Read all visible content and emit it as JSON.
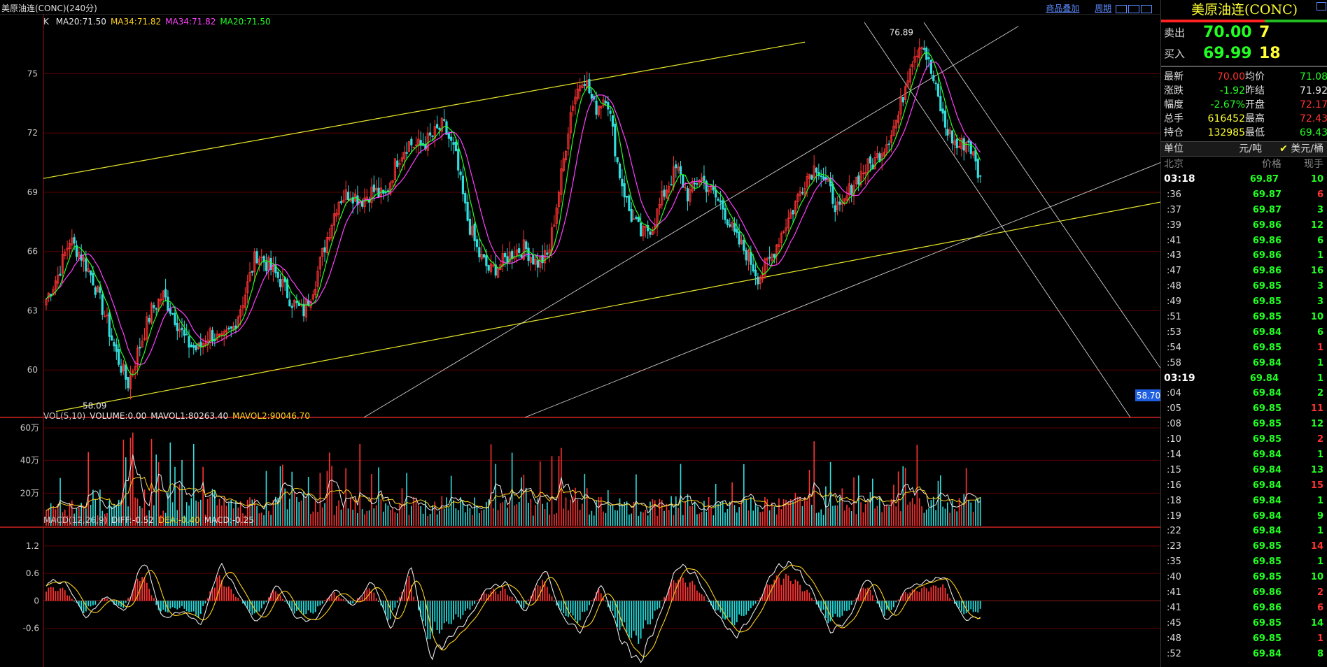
{
  "window": {
    "title": "美原油连(CONC)(240分)",
    "links": [
      "商品叠加",
      "周期"
    ]
  },
  "kline_panel": {
    "type_label": "K",
    "legend": [
      {
        "text": "MA20:71.50",
        "color": "#e8e8e8"
      },
      {
        "text": "MA34:71.82",
        "color": "#ffd21f"
      },
      {
        "text": "MA34:71.82",
        "color": "#ff40ff"
      },
      {
        "text": "MA20:71.50",
        "color": "#22ff22"
      }
    ],
    "price_ticks": [
      "75",
      "72",
      "69",
      "66",
      "63",
      "60"
    ],
    "high_label": "76.89",
    "low_label": "58.09",
    "cursor_price": "58.70"
  },
  "volume_panel": {
    "legend": [
      {
        "text": "VOL(5,10)",
        "color": "#c8c8c8"
      },
      {
        "text": "VOLUME:0.00",
        "color": "#e8e8e8"
      },
      {
        "text": "MAVOL1:80263.40",
        "color": "#e8e8e8"
      },
      {
        "text": "MAVOL2:90046.70",
        "color": "#ffd21f"
      }
    ],
    "ticks": [
      "60万",
      "40万",
      "20万"
    ]
  },
  "macd_panel": {
    "legend": [
      {
        "text": "MACD(12,26,9)",
        "color": "#c8c8c8"
      },
      {
        "text": "DIFF:-0.52",
        "color": "#e8e8e8"
      },
      {
        "text": "DEA:-0.40",
        "color": "#ffd21f"
      },
      {
        "text": "MACD:-0.25",
        "color": "#e8e8e8"
      }
    ],
    "ticks": [
      "1.2",
      "0.6",
      "0",
      "-0.6"
    ]
  },
  "chart_data": {
    "type": "candlestick-with-volume-and-macd",
    "price_axis": {
      "ticks": [
        75,
        72,
        69,
        66,
        63,
        60
      ],
      "range": [
        57.6,
        77.6
      ]
    },
    "price_path_waypoints": [
      63.6,
      64.8,
      66.6,
      65.8,
      64.6,
      62.8,
      60.8,
      59.3,
      61.2,
      63.0,
      63.8,
      62.7,
      61.4,
      61.0,
      61.9,
      61.4,
      62.1,
      63.8,
      65.9,
      65.3,
      64.6,
      63.5,
      62.9,
      64.4,
      66.6,
      68.6,
      69.0,
      68.6,
      69.1,
      68.7,
      70.6,
      71.5,
      71.3,
      71.8,
      72.4,
      71.0,
      67.8,
      65.9,
      65.0,
      65.4,
      66.0,
      66.2,
      65.4,
      65.8,
      69.4,
      73.4,
      75.0,
      73.2,
      74.0,
      70.2,
      67.9,
      66.8,
      67.4,
      69.1,
      70.2,
      68.8,
      69.8,
      69.0,
      68.2,
      66.7,
      65.9,
      64.7,
      65.6,
      67.0,
      68.2,
      69.7,
      70.4,
      69.2,
      67.9,
      69.4,
      70.1,
      70.6,
      71.6,
      72.9,
      75.6,
      76.7,
      74.6,
      72.3,
      71.3,
      71.6,
      69.6
    ],
    "special_levels": {
      "high": 76.89,
      "low": 58.09,
      "last": 69.84,
      "marker": 58.7
    },
    "volume_axis": {
      "ticks": [
        "60万",
        "40万",
        "20万"
      ],
      "max": 600000
    },
    "macd_axis": {
      "ticks": [
        1.2,
        0.6,
        0,
        -0.6
      ],
      "range": [
        -1.45,
        1.55
      ]
    },
    "macd_hist_waypoints": [
      0.35,
      0.25,
      -0.3,
      0.1,
      -0.2,
      0.7,
      -0.3,
      -0.15,
      -0.4,
      0.6,
      0.1,
      -0.4,
      0.3,
      -0.3,
      -0.3,
      0.2,
      -0.1,
      0.35,
      -0.5,
      0.6,
      -0.9,
      -0.6,
      -0.3,
      0.2,
      0.3,
      -0.2,
      0.55,
      -0.3,
      -0.5,
      0.3,
      -0.6,
      -1.0,
      -0.3,
      0.6,
      0.4,
      -0.2,
      -0.6,
      -0.2,
      0.5,
      0.6,
      0.2,
      -0.5,
      -0.3,
      0.45,
      -0.4,
      0.2,
      0.3,
      0.4,
      -0.3,
      -0.25
    ],
    "last_values": {
      "MA20": 71.5,
      "MA34": 71.82,
      "DIFF": -0.52,
      "DEA": -0.4,
      "MACD": -0.25
    }
  },
  "quote": {
    "name": "美原油连(CONC)",
    "ask_label": "卖出",
    "ask_price": "70.00",
    "ask_vol": "7",
    "bid_label": "买入",
    "bid_price": "69.99",
    "bid_vol": "18",
    "stats": [
      {
        "k1": "最新",
        "v1": "70.00",
        "c1": "#ff3333",
        "k2": "均价",
        "v2": "71.08",
        "c2": "#22ff22"
      },
      {
        "k1": "涨跌",
        "v1": "-1.92",
        "c1": "#22ff22",
        "k2": "昨结",
        "v2": "71.92",
        "c2": "#e8e8e8"
      },
      {
        "k1": "幅度",
        "v1": "-2.67%",
        "c1": "#22ff22",
        "k2": "开盘",
        "v2": "72.17",
        "c2": "#ff3333"
      },
      {
        "k1": "总手",
        "v1": "616452",
        "c1": "#ffff33",
        "k2": "最高",
        "v2": "72.43",
        "c2": "#ff3333"
      },
      {
        "k1": "持仓",
        "v1": "132985",
        "c1": "#ffff33",
        "k2": "最低",
        "v2": "69.43",
        "c2": "#22ff22"
      }
    ],
    "unit_label": "单位",
    "unit_value": "元/吨",
    "unit_selected": "美元/桶",
    "table_headers": [
      "北京",
      "价格",
      "现手"
    ],
    "ticks": [
      {
        "t": "03:18",
        "p": "69.87",
        "v": "10",
        "c": "#22ff22",
        "major": true
      },
      {
        "t": ":36",
        "p": "69.87",
        "v": "6",
        "c": "#ff3333"
      },
      {
        "t": ":37",
        "p": "69.87",
        "v": "3",
        "c": "#22ff22"
      },
      {
        "t": ":39",
        "p": "69.86",
        "v": "12",
        "c": "#22ff22"
      },
      {
        "t": ":41",
        "p": "69.86",
        "v": "6",
        "c": "#22ff22"
      },
      {
        "t": ":43",
        "p": "69.86",
        "v": "1",
        "c": "#22ff22"
      },
      {
        "t": ":47",
        "p": "69.86",
        "v": "16",
        "c": "#22ff22"
      },
      {
        "t": ":48",
        "p": "69.85",
        "v": "3",
        "c": "#22ff22"
      },
      {
        "t": ":49",
        "p": "69.85",
        "v": "3",
        "c": "#22ff22"
      },
      {
        "t": ":51",
        "p": "69.85",
        "v": "10",
        "c": "#22ff22"
      },
      {
        "t": ":53",
        "p": "69.84",
        "v": "6",
        "c": "#22ff22"
      },
      {
        "t": ":54",
        "p": "69.85",
        "v": "1",
        "c": "#ff3333"
      },
      {
        "t": ":58",
        "p": "69.84",
        "v": "1",
        "c": "#22ff22"
      },
      {
        "t": "03:19",
        "p": "69.84",
        "v": "1",
        "c": "#22ff22",
        "major": true
      },
      {
        "t": ":04",
        "p": "69.84",
        "v": "2",
        "c": "#22ff22"
      },
      {
        "t": ":05",
        "p": "69.85",
        "v": "11",
        "c": "#ff3333"
      },
      {
        "t": ":08",
        "p": "69.85",
        "v": "12",
        "c": "#22ff22"
      },
      {
        "t": ":10",
        "p": "69.85",
        "v": "2",
        "c": "#ff3333"
      },
      {
        "t": ":14",
        "p": "69.84",
        "v": "1",
        "c": "#22ff22"
      },
      {
        "t": ":15",
        "p": "69.84",
        "v": "13",
        "c": "#22ff22"
      },
      {
        "t": ":16",
        "p": "69.84",
        "v": "15",
        "c": "#ff3333"
      },
      {
        "t": ":18",
        "p": "69.84",
        "v": "1",
        "c": "#22ff22"
      },
      {
        "t": ":19",
        "p": "69.84",
        "v": "9",
        "c": "#22ff22"
      },
      {
        "t": ":22",
        "p": "69.84",
        "v": "1",
        "c": "#22ff22"
      },
      {
        "t": ":23",
        "p": "69.85",
        "v": "14",
        "c": "#ff3333"
      },
      {
        "t": ":35",
        "p": "69.85",
        "v": "1",
        "c": "#22ff22"
      },
      {
        "t": ":40",
        "p": "69.85",
        "v": "10",
        "c": "#22ff22"
      },
      {
        "t": ":41",
        "p": "69.86",
        "v": "2",
        "c": "#ff3333"
      },
      {
        "t": ":41",
        "p": "69.86",
        "v": "6",
        "c": "#ff3333"
      },
      {
        "t": ":45",
        "p": "69.85",
        "v": "14",
        "c": "#22ff22"
      },
      {
        "t": ":48",
        "p": "69.85",
        "v": "1",
        "c": "#ff3333"
      },
      {
        "t": ":52",
        "p": "69.84",
        "v": "8",
        "c": "#22ff22"
      }
    ]
  },
  "colors": {
    "background": "#000000",
    "up": "#ff3333",
    "down": "#33dddd",
    "grid": "#5a0000",
    "trend_yellow": "#e6e62a",
    "trend_white": "#d0d0d0"
  }
}
